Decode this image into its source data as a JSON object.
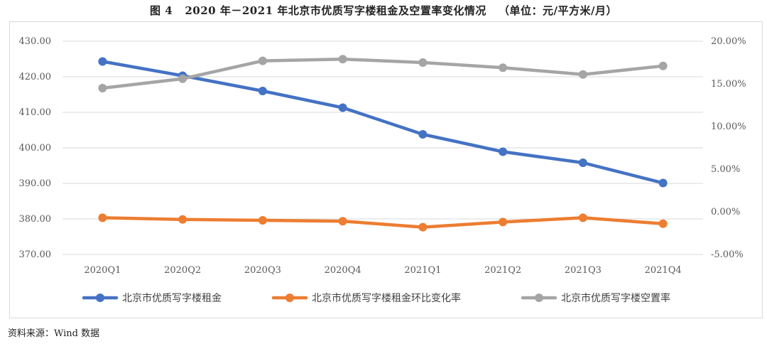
{
  "figure_title": "图 4   2020 年－2021 年北京市优质写字楼租金及空置率变化情况   （单位：元/平方米/月）",
  "source_note": "资料来源：Wind 数据",
  "chart_data": {
    "type": "line",
    "categories": [
      "2020Q1",
      "2020Q2",
      "2020Q3",
      "2020Q4",
      "2021Q1",
      "2021Q2",
      "2021Q3",
      "2021Q4"
    ],
    "y_left": {
      "ylim": [
        370,
        430
      ],
      "ticks": [
        "370.00",
        "380.00",
        "390.00",
        "400.00",
        "410.00",
        "420.00",
        "430.00"
      ]
    },
    "y_right": {
      "ylim": [
        -5,
        20
      ],
      "ticks": [
        "-5.00%",
        "0.00%",
        "5.00%",
        "10.00%",
        "15.00%",
        "20.00%"
      ]
    },
    "grid": true,
    "legend_position": "bottom",
    "series": [
      {
        "name": "北京市优质写字楼租金",
        "axis": "left",
        "color": "#4472C4",
        "values": [
          424.3,
          420.3,
          416.0,
          411.3,
          403.8,
          398.9,
          395.8,
          390.1
        ]
      },
      {
        "name": "北京市优质写字楼租金环比变化率",
        "axis": "right",
        "color": "#ED7D31",
        "values": [
          -0.7,
          -0.9,
          -1.0,
          -1.1,
          -1.8,
          -1.2,
          -0.7,
          -1.4
        ]
      },
      {
        "name": "北京市优质写字楼空置率",
        "axis": "right",
        "color": "#A5A5A5",
        "values": [
          14.5,
          15.6,
          17.7,
          17.9,
          17.5,
          16.9,
          16.1,
          17.1
        ]
      }
    ]
  }
}
